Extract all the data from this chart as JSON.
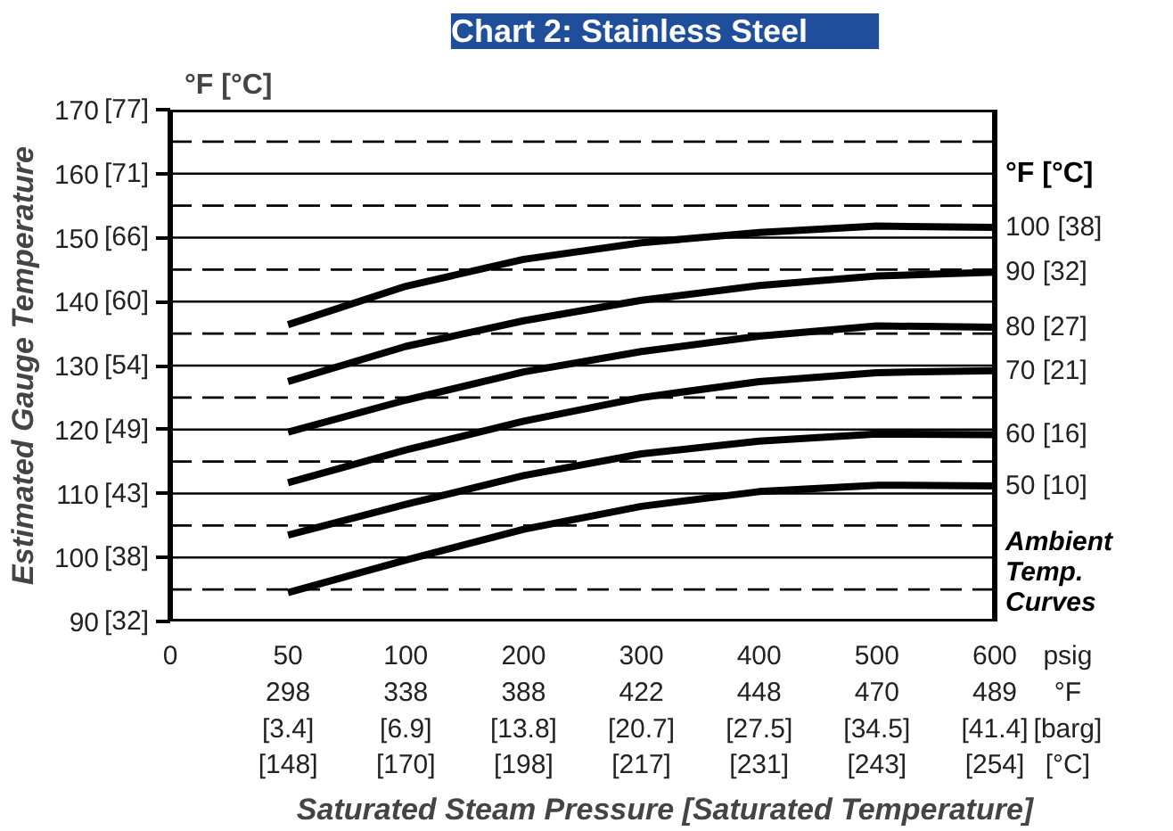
{
  "chart_data": {
    "type": "line",
    "title": "Chart 2: Stainless Steel",
    "xlabel": "Saturated Steam Pressure [Saturated Temperature]",
    "ylabel": "Estimated Gauge Temperature",
    "categories": [
      "0",
      "50\n298\n[3.4]\n[148]",
      "100\n338\n[6.9]\n[170]",
      "200\n388\n[13.8]\n[198]",
      "300\n422\n[20.7]\n[217]",
      "400\n448\n[27.5]\n[231]",
      "500\n470\n[34.5]\n[243]",
      "600\n489\n[41.4]\n[254]"
    ],
    "series": [
      {
        "name": "100 [38]",
        "color": "#000000",
        "values": [
          null,
          136.4,
          142.4,
          146.6,
          149.2,
          150.8,
          151.8,
          151.6
        ]
      },
      {
        "name": "90 [32]",
        "color": "#000000",
        "values": [
          null,
          127.5,
          133.0,
          137.0,
          140.2,
          142.5,
          144.0,
          144.6
        ]
      },
      {
        "name": "80 [27]",
        "color": "#000000",
        "values": [
          null,
          119.6,
          124.6,
          129.0,
          132.2,
          134.6,
          136.2,
          136.0
        ]
      },
      {
        "name": "70 [21]",
        "color": "#000000",
        "values": [
          null,
          111.7,
          116.8,
          121.3,
          125.0,
          127.5,
          128.9,
          129.2
        ]
      },
      {
        "name": "60 [16]",
        "color": "#000000",
        "values": [
          null,
          103.5,
          108.3,
          112.8,
          116.2,
          118.2,
          119.3,
          119.2
        ]
      },
      {
        "name": "50 [10]",
        "color": "#000000",
        "values": [
          null,
          94.5,
          99.6,
          104.4,
          108.0,
          110.3,
          111.3,
          111.2
        ]
      }
    ],
    "ylim": [
      90,
      170
    ],
    "yticks": [
      90,
      100,
      110,
      120,
      130,
      140,
      150,
      160,
      170
    ],
    "y2lim": [
      32.22,
      76.67
    ],
    "y2ticks": [
      {
        "value": 32.22,
        "label": "[32]"
      },
      {
        "value": 37.78,
        "label": "[38]"
      },
      {
        "value": 43.33,
        "label": "[43]"
      },
      {
        "value": 48.89,
        "label": "[49]"
      },
      {
        "value": 54.44,
        "label": "[54]"
      },
      {
        "value": 60.0,
        "label": "[60]"
      },
      {
        "value": 65.56,
        "label": "[66]"
      },
      {
        "value": 71.11,
        "label": "[71]"
      },
      {
        "value": 76.67,
        "label": "[77]"
      }
    ],
    "ref_lines": [
      {
        "axis": "y",
        "value": 95,
        "line_style": "dashed"
      },
      {
        "axis": "y",
        "value": 105,
        "line_style": "dashed"
      },
      {
        "axis": "y",
        "value": 115,
        "line_style": "dashed"
      },
      {
        "axis": "y",
        "value": 125,
        "line_style": "dashed"
      },
      {
        "axis": "y",
        "value": 135,
        "line_style": "dashed"
      },
      {
        "axis": "y",
        "value": 145,
        "line_style": "dashed"
      },
      {
        "axis": "y",
        "value": 155,
        "line_style": "dashed"
      },
      {
        "axis": "y",
        "value": 165,
        "line_style": "dashed"
      }
    ],
    "annotations": [
      "°F [°C]",
      "°F [°C]",
      "Ambient Temp. Curves",
      "psig °F [barg] [°C]"
    ],
    "grid": "y",
    "legend": false,
    "marker": "none",
    "line_style": "solid"
  }
}
